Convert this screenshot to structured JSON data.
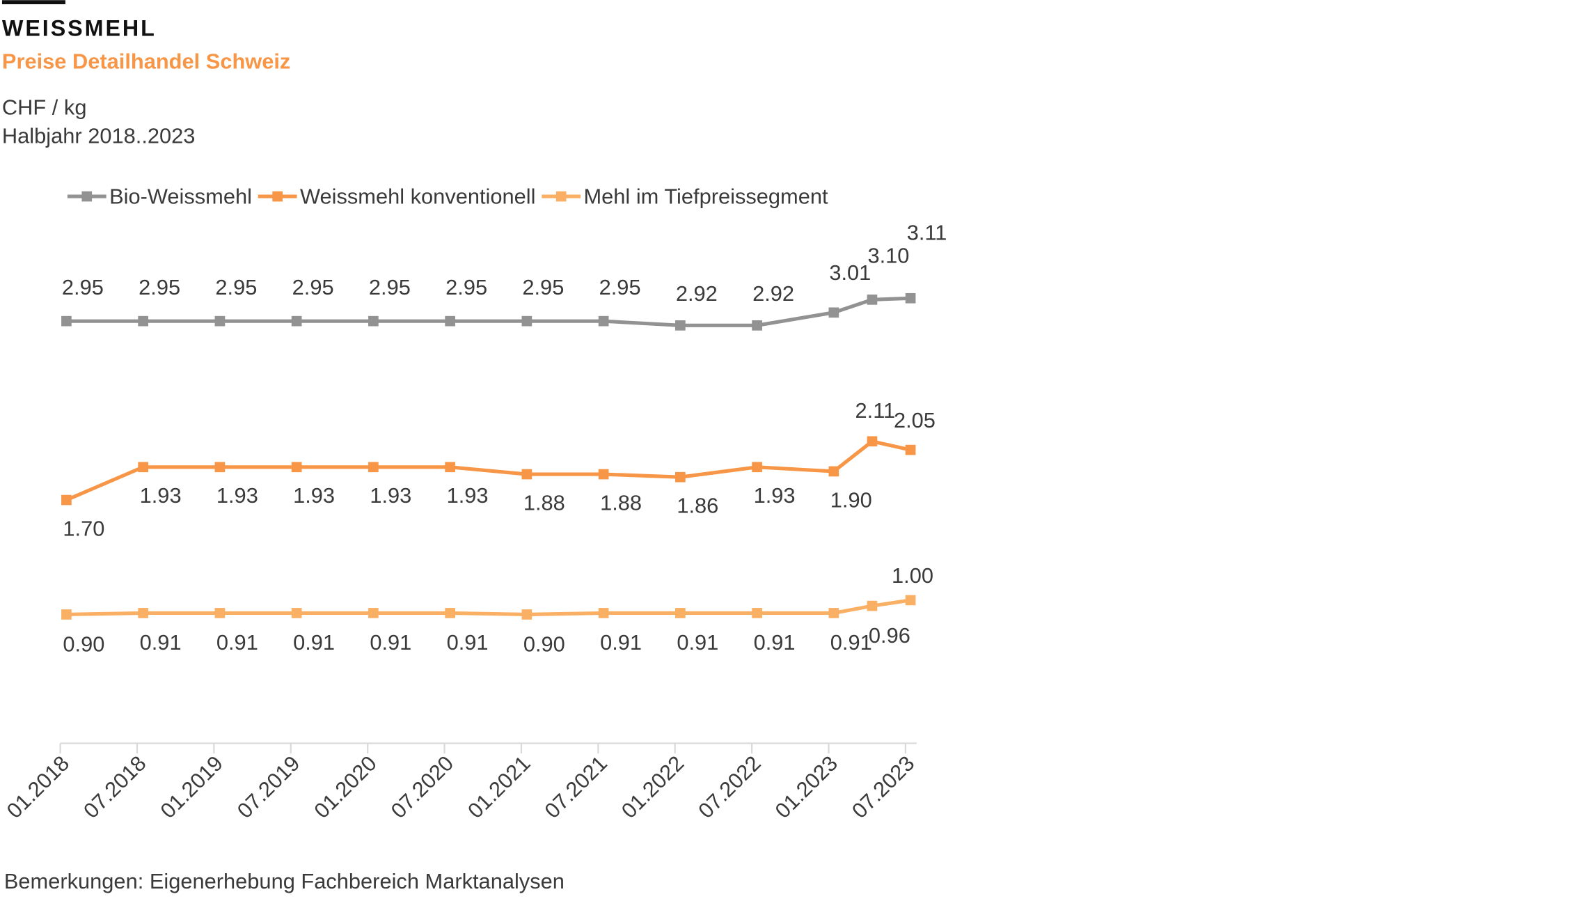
{
  "chart_data": {
    "type": "line",
    "title": "WEISSMEHL",
    "subtitle": "Preise Detailhandel Schweiz",
    "unit": "CHF / kg",
    "period": "Halbjahr 2018..2023",
    "note": "Bemerkungen: Eigenerhebung Fachbereich Marktanalysen",
    "tick_labels": [
      "01.2018",
      "07.2018",
      "01.2019",
      "07.2019",
      "01.2020",
      "07.2020",
      "01.2021",
      "07.2021",
      "01.2022",
      "07.2022",
      "01.2023",
      "07.2023"
    ],
    "x": [
      0,
      1,
      2,
      3,
      4,
      5,
      6,
      7,
      8,
      9,
      10,
      10.5,
      11
    ],
    "ylim": [
      0,
      3.5
    ],
    "grid": false,
    "legend_position": "top",
    "series": [
      {
        "name": "Bio-Weissmehl",
        "color": "#929292",
        "values": [
          2.95,
          2.95,
          2.95,
          2.95,
          2.95,
          2.95,
          2.95,
          2.95,
          2.92,
          2.92,
          3.01,
          3.1,
          3.11
        ],
        "labels": [
          "2.95",
          "2.95",
          "2.95",
          "2.95",
          "2.95",
          "2.95",
          "2.95",
          "2.95",
          "2.92",
          "2.92",
          "3.01",
          "3.10",
          "3.11"
        ]
      },
      {
        "name": "Weissmehl konventionell",
        "color": "#F79646",
        "values": [
          1.7,
          1.93,
          1.93,
          1.93,
          1.93,
          1.93,
          1.88,
          1.88,
          1.86,
          1.93,
          1.9,
          2.11,
          2.05
        ],
        "labels": [
          "1.70",
          "1.93",
          "1.93",
          "1.93",
          "1.93",
          "1.93",
          "1.88",
          "1.88",
          "1.86",
          "1.93",
          "1.90",
          "2.11",
          "2.05"
        ]
      },
      {
        "name": "Mehl im Tiefpreissegment",
        "color": "#FAB064",
        "values": [
          0.9,
          0.91,
          0.91,
          0.91,
          0.91,
          0.91,
          0.9,
          0.91,
          0.91,
          0.91,
          0.91,
          0.96,
          1.0
        ],
        "labels": [
          "0.90",
          "0.91",
          "0.91",
          "0.91",
          "0.91",
          "0.91",
          "0.90",
          "0.91",
          "0.91",
          "0.91",
          "0.91",
          "0.96",
          "1.00"
        ]
      }
    ]
  },
  "colors": {
    "title": "#111111",
    "subtitle": "#F79646",
    "axis": "#d9d9d9",
    "text": "#3a3a3a"
  }
}
